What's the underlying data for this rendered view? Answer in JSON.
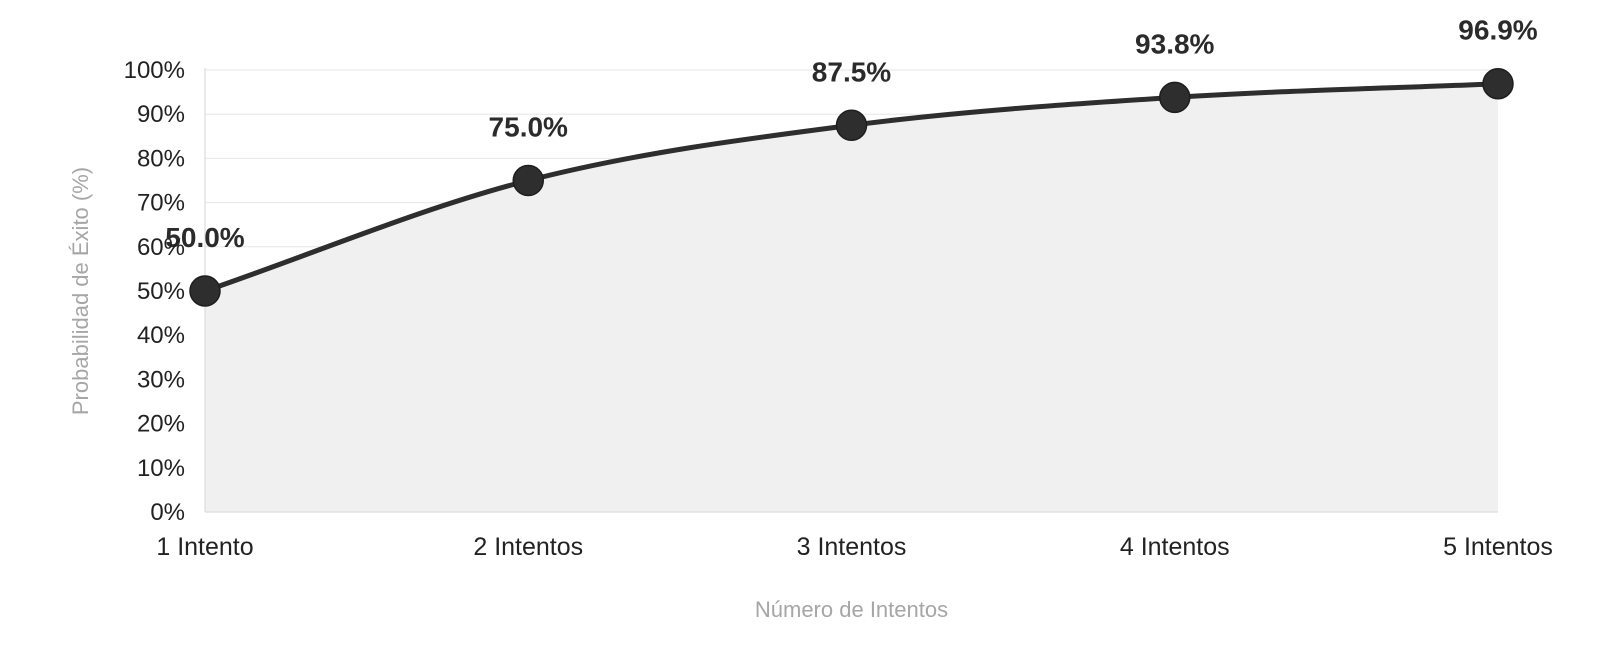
{
  "chart_data": {
    "type": "area",
    "categories": [
      "1 Intento",
      "2 Intentos",
      "3 Intentos",
      "4 Intentos",
      "5 Intentos"
    ],
    "series": [
      {
        "values": [
          50.0,
          75.0,
          87.5,
          93.8,
          96.9
        ],
        "data_labels": [
          "50.0%",
          "75.0%",
          "87.5%",
          "93.8%",
          "96.9%"
        ]
      }
    ],
    "xlabel": "Número de Intentos",
    "ylabel": "Probabilidad de Éxito (%)",
    "ylim": [
      0,
      100
    ],
    "y_ticks": [
      0,
      10,
      20,
      30,
      40,
      50,
      60,
      70,
      80,
      90,
      100
    ],
    "y_tick_labels": [
      "0%",
      "10%",
      "20%",
      "30%",
      "40%",
      "50%",
      "60%",
      "70%",
      "80%",
      "90%",
      "100%"
    ],
    "grid": true,
    "smooth": true,
    "legend": "none",
    "colors": {
      "line": "#2e2e2e",
      "area": "#f0f0f0",
      "grid": "#e6e6e6",
      "axis_title": "#a6a6a6"
    }
  }
}
